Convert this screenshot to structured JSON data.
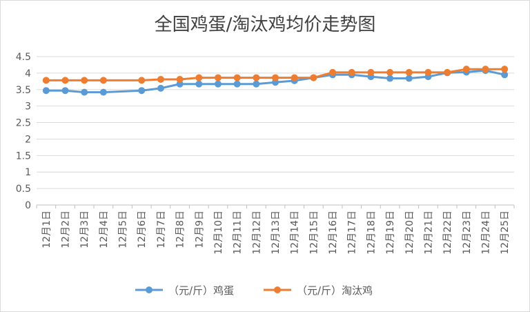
{
  "chart_data": {
    "type": "line",
    "title": "全国鸡蛋/淘汰鸡均价走势图",
    "xlabel": "",
    "ylabel": "",
    "categories": [
      "12月1日",
      "12月2日",
      "12月3日",
      "12月4日",
      "12月5日",
      "12月6日",
      "12月7日",
      "12月8日",
      "12月9日",
      "12月10日",
      "12月11日",
      "12月12日",
      "12月13日",
      "12月14日",
      "12月15日",
      "12月16日",
      "12月17日",
      "12月18日",
      "12月19日",
      "12月20日",
      "12月21日",
      "12月22日",
      "12月23日",
      "12月24日",
      "12月25日"
    ],
    "ylim": [
      0,
      4.5
    ],
    "yticks": [
      "0",
      "0.5",
      "1",
      "1.5",
      "2",
      "2.5",
      "3",
      "3.5",
      "4",
      "4.5"
    ],
    "grid": true,
    "legend": "bottom",
    "series": [
      {
        "name": "（元/斤）鸡蛋",
        "color": "#5b9bd5",
        "values": [
          3.47,
          3.47,
          3.42,
          3.42,
          null,
          3.47,
          3.54,
          3.67,
          3.67,
          3.67,
          3.67,
          3.67,
          3.72,
          3.77,
          3.86,
          3.95,
          3.95,
          3.89,
          3.84,
          3.84,
          3.89,
          4.01,
          4.03,
          4.08,
          3.95
        ]
      },
      {
        "name": "（元/斤）淘汰鸡",
        "color": "#ed7d31",
        "values": [
          3.78,
          3.78,
          3.78,
          3.78,
          null,
          3.78,
          3.81,
          3.81,
          3.86,
          3.86,
          3.86,
          3.86,
          3.86,
          3.86,
          3.86,
          4.02,
          4.02,
          4.02,
          4.02,
          4.02,
          4.02,
          4.02,
          4.12,
          4.12,
          4.12
        ]
      }
    ]
  }
}
